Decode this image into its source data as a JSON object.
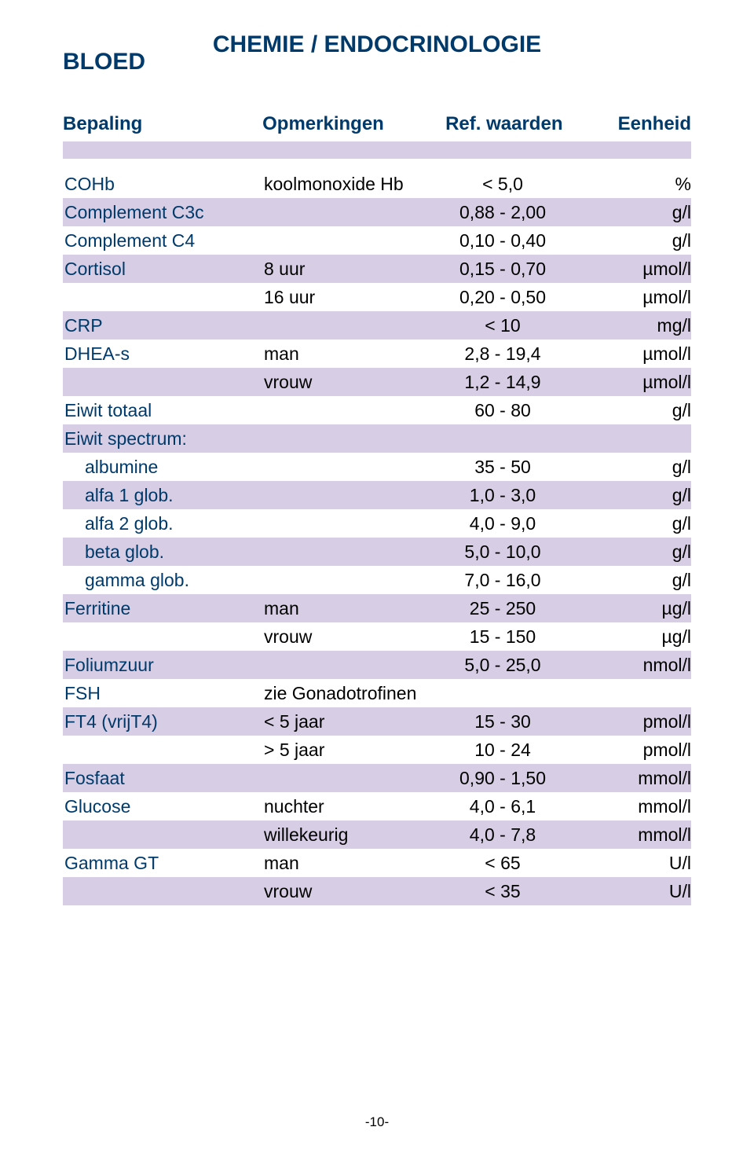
{
  "header": {
    "section": "BLOED",
    "category": "CHEMIE / ENDOCRINOLOGIE"
  },
  "columns": {
    "c1": "Bepaling",
    "c2": "Opmerkingen",
    "c3": "Ref. waarden",
    "c4": "Eenheid"
  },
  "colors": {
    "heading": "#003a6b",
    "shade": "#d7cde4",
    "text": "#000000",
    "bg": "#ffffff"
  },
  "fonts": {
    "title_size": 30,
    "header_size": 24,
    "row_size": 23
  },
  "rows": [
    {
      "c1": "COHb",
      "c2": "koolmonoxide Hb",
      "c3": "< 5,0",
      "c4": "%",
      "shade": false,
      "indent": false
    },
    {
      "c1": "Complement C3c",
      "c2": "",
      "c3": "0,88 - 2,00",
      "c4": "g/l",
      "shade": true,
      "indent": false
    },
    {
      "c1": "Complement C4",
      "c2": "",
      "c3": "0,10 - 0,40",
      "c4": "g/l",
      "shade": false,
      "indent": false
    },
    {
      "c1": "Cortisol",
      "c2": "8 uur",
      "c3": "0,15 - 0,70",
      "c4": "µmol/l",
      "shade": true,
      "indent": false
    },
    {
      "c1": "",
      "c2": "16 uur",
      "c3": "0,20 - 0,50",
      "c4": "µmol/l",
      "shade": false,
      "indent": false
    },
    {
      "c1": "CRP",
      "c2": "",
      "c3": "< 10",
      "c4": "mg/l",
      "shade": true,
      "indent": false
    },
    {
      "c1": "DHEA-s",
      "c2": "man",
      "c3": "2,8 - 19,4",
      "c4": "µmol/l",
      "shade": false,
      "indent": false
    },
    {
      "c1": "",
      "c2": "vrouw",
      "c3": "1,2 - 14,9",
      "c4": "µmol/l",
      "shade": true,
      "indent": false
    },
    {
      "c1": "Eiwit totaal",
      "c2": "",
      "c3": "60 - 80",
      "c4": "g/l",
      "shade": false,
      "indent": false
    },
    {
      "c1": "Eiwit spectrum:",
      "c2": "",
      "c3": "",
      "c4": "",
      "shade": true,
      "indent": false
    },
    {
      "c1": "albumine",
      "c2": "",
      "c3": "35 - 50",
      "c4": "g/l",
      "shade": false,
      "indent": true
    },
    {
      "c1": "alfa 1 glob.",
      "c2": "",
      "c3": "1,0 - 3,0",
      "c4": "g/l",
      "shade": true,
      "indent": true
    },
    {
      "c1": "alfa 2 glob.",
      "c2": "",
      "c3": "4,0 - 9,0",
      "c4": "g/l",
      "shade": false,
      "indent": true
    },
    {
      "c1": "beta glob.",
      "c2": "",
      "c3": "5,0 - 10,0",
      "c4": "g/l",
      "shade": true,
      "indent": true
    },
    {
      "c1": "gamma glob.",
      "c2": "",
      "c3": "7,0 - 16,0",
      "c4": "g/l",
      "shade": false,
      "indent": true
    },
    {
      "c1": "Ferritine",
      "c2": "man",
      "c3": "25 - 250",
      "c4": "µg/l",
      "shade": true,
      "indent": false
    },
    {
      "c1": "",
      "c2": "vrouw",
      "c3": "15 - 150",
      "c4": "µg/l",
      "shade": false,
      "indent": false
    },
    {
      "c1": "Foliumzuur",
      "c2": "",
      "c3": "5,0 - 25,0",
      "c4": "nmol/l",
      "shade": true,
      "indent": false
    },
    {
      "c1": "FSH",
      "c2": "zie Gonadotrofinen",
      "c3": "",
      "c4": "",
      "shade": false,
      "indent": false
    },
    {
      "c1": "FT4 (vrijT4)",
      "c2": "< 5 jaar",
      "c3": "15 - 30",
      "c4": "pmol/l",
      "shade": true,
      "indent": false
    },
    {
      "c1": "",
      "c2": "> 5 jaar",
      "c3": "10 - 24",
      "c4": "pmol/l",
      "shade": false,
      "indent": false
    },
    {
      "c1": "Fosfaat",
      "c2": "",
      "c3": "0,90 - 1,50",
      "c4": "mmol/l",
      "shade": true,
      "indent": false
    },
    {
      "c1": "Glucose",
      "c2": "nuchter",
      "c3": "4,0 - 6,1",
      "c4": "mmol/l",
      "shade": false,
      "indent": false
    },
    {
      "c1": "",
      "c2": "willekeurig",
      "c3": "4,0 - 7,8",
      "c4": "mmol/l",
      "shade": true,
      "indent": false
    },
    {
      "c1": "Gamma GT",
      "c2": "man",
      "c3": "< 65",
      "c4": "U/l",
      "shade": false,
      "indent": false
    },
    {
      "c1": "",
      "c2": "vrouw",
      "c3": "< 35",
      "c4": "U/l",
      "shade": true,
      "indent": false
    }
  ],
  "footer": {
    "page": "-10-"
  }
}
